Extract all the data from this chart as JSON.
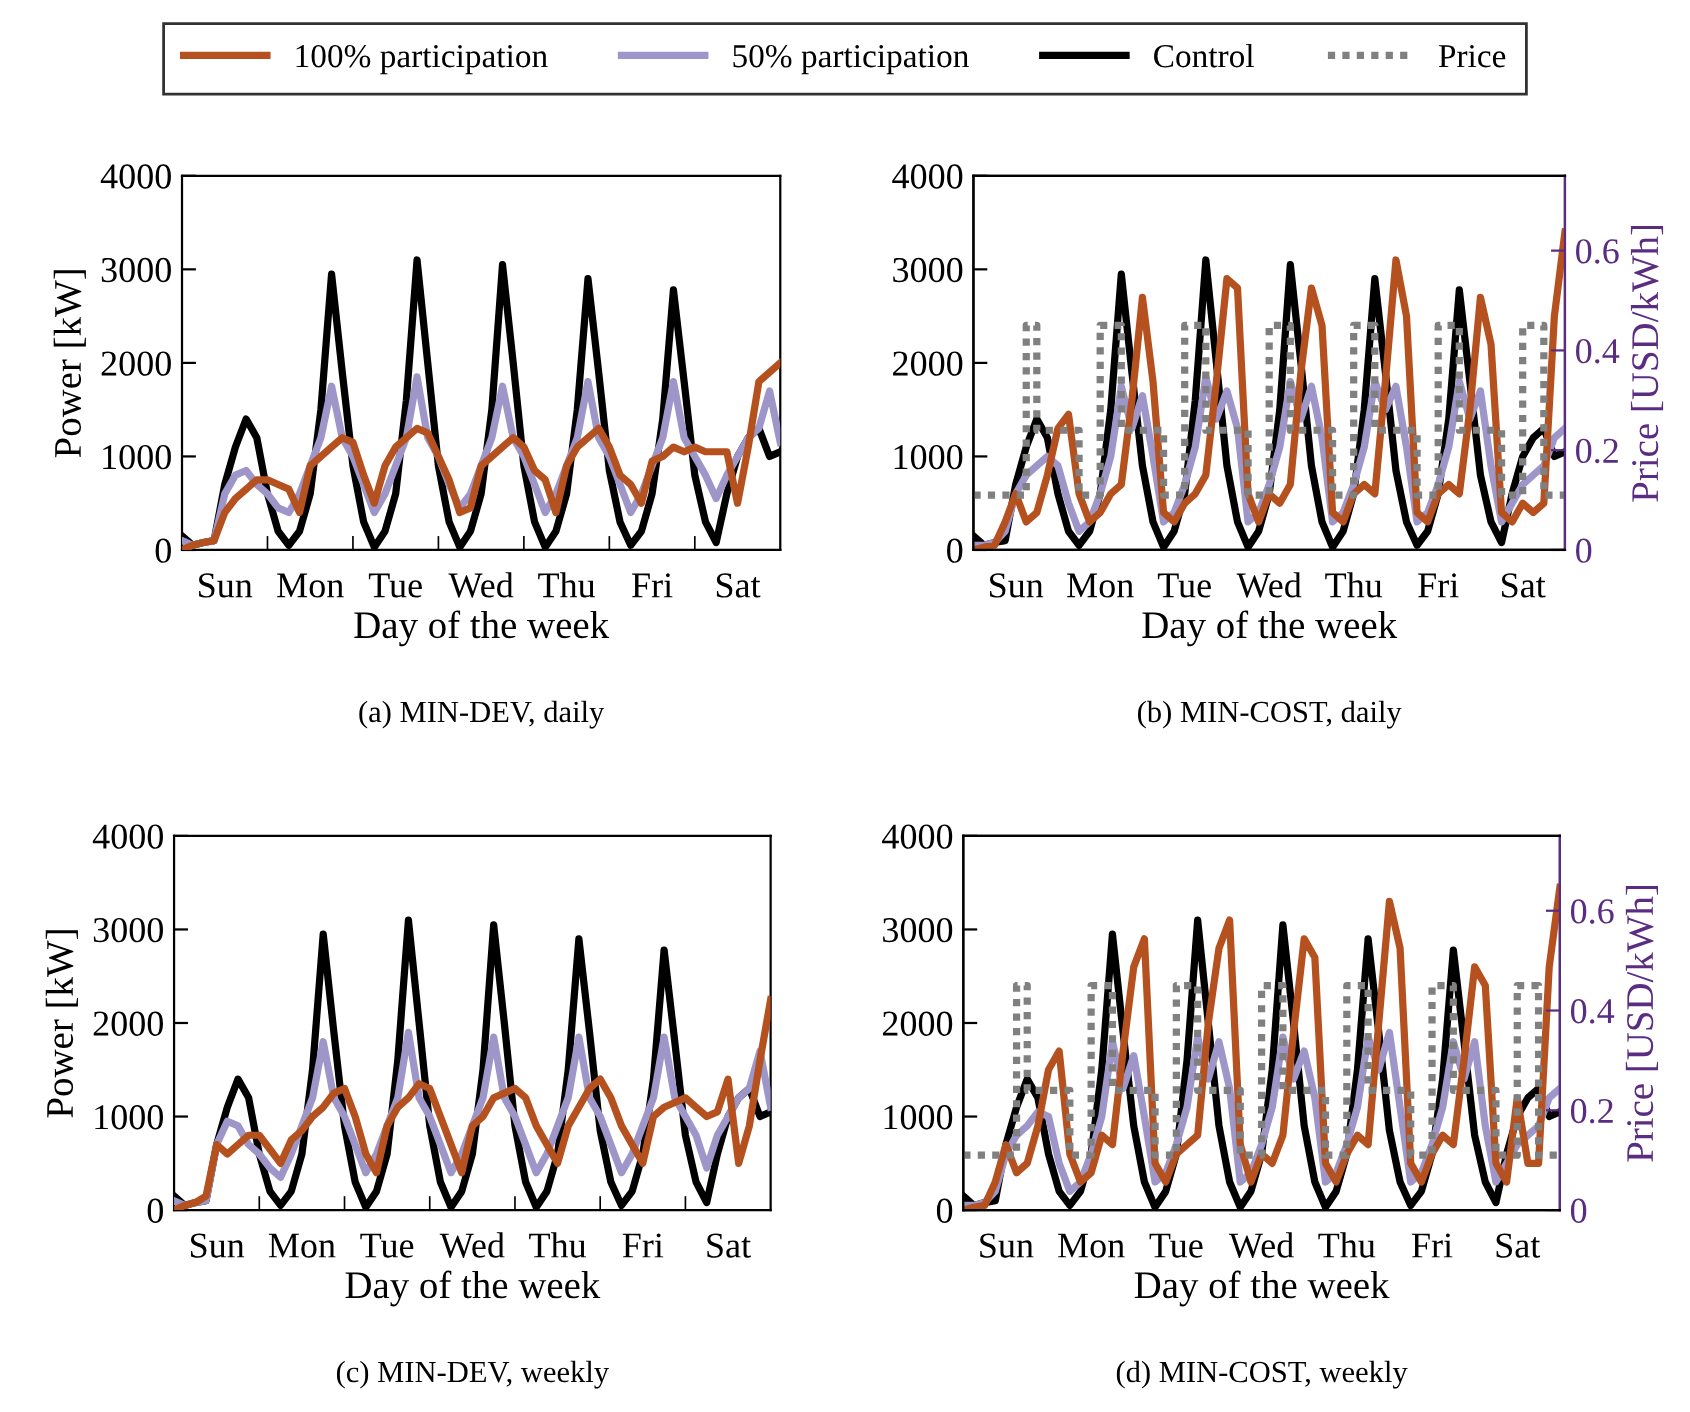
{
  "chart_data": [
    {
      "type": "line",
      "title": "(a) MIN-DEV, daily",
      "xlabel": "Day of the week",
      "ylabel": "Power [kW]",
      "legend": "top",
      "ylim": [
        0,
        4000
      ],
      "yticks": [
        0,
        1000,
        2000,
        3000,
        4000
      ],
      "categories": [
        null,
        null,
        null,
        null,
        "Sun",
        null,
        null,
        null,
        null,
        null,
        null,
        null,
        "Mon",
        null,
        null,
        null,
        null,
        null,
        null,
        null,
        "Tue",
        null,
        null,
        null,
        null,
        null,
        null,
        null,
        "Wed",
        null,
        null,
        null,
        null,
        null,
        null,
        null,
        "Thu",
        null,
        null,
        null,
        null,
        null,
        null,
        null,
        "Fri",
        null,
        null,
        null,
        null,
        null,
        null,
        null,
        "Sat",
        null,
        null,
        null,
        null
      ],
      "series": [
        {
          "name": "100% participation",
          "color": "#b5511f",
          "values": [
            0,
            50,
            80,
            100,
            400,
            550,
            650,
            750,
            750,
            700,
            650,
            400,
            900,
            1000,
            1100,
            1200,
            1150,
            800,
            500,
            900,
            1100,
            1200,
            1300,
            1250,
            1000,
            750,
            400,
            450,
            900,
            1000,
            1100,
            1200,
            1100,
            850,
            750,
            400,
            900,
            1100,
            1200,
            1300,
            1100,
            800,
            700,
            500,
            950,
            1000,
            1100,
            1050,
            1100,
            1050,
            1050,
            1050,
            500,
            1100,
            1800,
            1900,
            2000
          ]
        },
        {
          "name": "50% participation",
          "color": "#9e96c8",
          "values": [
            100,
            50,
            80,
            100,
            600,
            800,
            850,
            700,
            600,
            450,
            400,
            600,
            900,
            1200,
            1750,
            1200,
            1000,
            700,
            400,
            600,
            900,
            1200,
            1850,
            1200,
            1000,
            700,
            450,
            600,
            900,
            1200,
            1750,
            1200,
            1000,
            700,
            400,
            600,
            900,
            1200,
            1800,
            1200,
            1000,
            700,
            400,
            600,
            900,
            1200,
            1800,
            1200,
            1000,
            800,
            550,
            800,
            1000,
            1200,
            1300,
            1700,
            1150
          ]
        },
        {
          "name": "Control",
          "color": "#000000",
          "values": [
            150,
            50,
            80,
            100,
            700,
            1100,
            1400,
            1200,
            600,
            200,
            50,
            200,
            600,
            1500,
            2950,
            1900,
            900,
            300,
            30,
            200,
            600,
            1600,
            3100,
            2000,
            900,
            300,
            30,
            200,
            600,
            1500,
            3050,
            2000,
            900,
            300,
            30,
            200,
            600,
            1500,
            2900,
            1900,
            850,
            300,
            50,
            200,
            600,
            1400,
            2780,
            1800,
            800,
            300,
            80,
            600,
            1000,
            1200,
            1300,
            1000,
            1050
          ]
        }
      ]
    },
    {
      "type": "line",
      "title": "(b) MIN-COST, daily",
      "xlabel": "Day of the week",
      "y2label": "Price [USD/kWh]",
      "legend": "top",
      "ylim": [
        0,
        4000
      ],
      "yticks": [
        0,
        1000,
        2000,
        3000,
        4000
      ],
      "y2lim": [
        0,
        0.75
      ],
      "y2ticks": [
        0,
        0.2,
        0.4,
        0.6
      ],
      "categories": [
        null,
        null,
        null,
        null,
        "Sun",
        null,
        null,
        null,
        null,
        null,
        null,
        null,
        "Mon",
        null,
        null,
        null,
        null,
        null,
        null,
        null,
        "Tue",
        null,
        null,
        null,
        null,
        null,
        null,
        null,
        "Wed",
        null,
        null,
        null,
        null,
        null,
        null,
        null,
        "Thu",
        null,
        null,
        null,
        null,
        null,
        null,
        null,
        "Fri",
        null,
        null,
        null,
        null,
        null,
        null,
        null,
        "Sat",
        null,
        null,
        null,
        null
      ],
      "series": [
        {
          "name": "100% participation",
          "color": "#b5511f",
          "values": [
            0,
            30,
            50,
            300,
            600,
            300,
            400,
            800,
            1300,
            1450,
            600,
            300,
            400,
            600,
            700,
            1600,
            2700,
            1800,
            400,
            300,
            500,
            600,
            800,
            1800,
            2900,
            2800,
            600,
            300,
            600,
            500,
            700,
            1900,
            2800,
            2400,
            400,
            300,
            600,
            700,
            600,
            1800,
            3100,
            2500,
            400,
            300,
            600,
            700,
            600,
            1500,
            2700,
            2200,
            400,
            300,
            500,
            400,
            500,
            2500,
            3400
          ]
        },
        {
          "name": "50% participation",
          "color": "#9e96c8",
          "values": [
            50,
            50,
            80,
            200,
            600,
            800,
            900,
            1000,
            900,
            500,
            200,
            300,
            600,
            1000,
            1750,
            1300,
            1650,
            1000,
            300,
            400,
            700,
            1100,
            1850,
            1400,
            1700,
            1300,
            300,
            400,
            700,
            1100,
            1800,
            1400,
            1750,
            1200,
            300,
            400,
            700,
            1100,
            1800,
            1500,
            1750,
            1100,
            300,
            400,
            700,
            1100,
            1800,
            1400,
            1700,
            900,
            300,
            500,
            700,
            800,
            900,
            1200,
            1300
          ]
        },
        {
          "name": "Control",
          "color": "#000000",
          "values": [
            150,
            50,
            80,
            100,
            700,
            1100,
            1400,
            1200,
            600,
            200,
            50,
            200,
            600,
            1500,
            2950,
            1900,
            900,
            300,
            30,
            200,
            600,
            1600,
            3100,
            2000,
            900,
            300,
            30,
            200,
            600,
            1500,
            3050,
            2000,
            900,
            300,
            30,
            200,
            600,
            1500,
            2900,
            1900,
            850,
            300,
            50,
            200,
            600,
            1400,
            2780,
            1800,
            800,
            300,
            80,
            600,
            1000,
            1200,
            1300,
            1000,
            1050
          ]
        },
        {
          "name": "Price",
          "type": "step",
          "axis": "y2",
          "line_style": "dotted",
          "color": "#808080",
          "values": [
            0.11,
            0.11,
            0.11,
            0.11,
            0.11,
            0.45,
            0.24,
            0.24,
            0.24,
            0.24,
            0.11,
            0.11,
            0.45,
            0.45,
            0.24,
            0.24,
            0.24,
            0.24,
            0.11,
            0.11,
            0.45,
            0.45,
            0.24,
            0.24,
            0.24,
            0.24,
            0.11,
            0.11,
            0.45,
            0.45,
            0.24,
            0.24,
            0.24,
            0.24,
            0.11,
            0.11,
            0.45,
            0.45,
            0.24,
            0.24,
            0.24,
            0.24,
            0.11,
            0.11,
            0.45,
            0.45,
            0.24,
            0.24,
            0.24,
            0.24,
            0.11,
            0.11,
            0.45,
            0.45,
            0.11,
            0.11,
            0.11
          ]
        }
      ]
    },
    {
      "type": "line",
      "title": "(c) MIN-DEV, weekly",
      "xlabel": "Day of the week",
      "ylabel": "Power [kW]",
      "legend": "top",
      "ylim": [
        0,
        4000
      ],
      "yticks": [
        0,
        1000,
        2000,
        3000,
        4000
      ],
      "categories": [
        null,
        null,
        null,
        null,
        "Sun",
        null,
        null,
        null,
        null,
        null,
        null,
        null,
        "Mon",
        null,
        null,
        null,
        null,
        null,
        null,
        null,
        "Tue",
        null,
        null,
        null,
        null,
        null,
        null,
        null,
        "Wed",
        null,
        null,
        null,
        null,
        null,
        null,
        null,
        "Thu",
        null,
        null,
        null,
        null,
        null,
        null,
        null,
        "Fri",
        null,
        null,
        null,
        null,
        null,
        null,
        null,
        "Sat",
        null,
        null,
        null,
        null
      ],
      "series": [
        {
          "name": "100% participation",
          "color": "#b5511f",
          "values": [
            0,
            50,
            80,
            150,
            700,
            600,
            700,
            800,
            800,
            650,
            500,
            750,
            850,
            1000,
            1100,
            1250,
            1300,
            1000,
            600,
            400,
            900,
            1100,
            1200,
            1350,
            1300,
            1000,
            700,
            400,
            900,
            1000,
            1200,
            1250,
            1300,
            1200,
            900,
            700,
            500,
            900,
            1100,
            1300,
            1400,
            1200,
            900,
            700,
            500,
            1000,
            1100,
            1150,
            1200,
            1100,
            1000,
            1050,
            1400,
            500,
            900,
            1600,
            2250
          ]
        },
        {
          "name": "50% participation",
          "color": "#9e96c8",
          "values": [
            100,
            50,
            80,
            100,
            700,
            950,
            900,
            700,
            600,
            450,
            350,
            600,
            900,
            1200,
            1800,
            1200,
            1000,
            700,
            400,
            600,
            900,
            1200,
            1900,
            1200,
            1000,
            700,
            400,
            600,
            900,
            1200,
            1850,
            1200,
            1000,
            700,
            400,
            600,
            900,
            1200,
            1850,
            1200,
            1000,
            700,
            400,
            600,
            900,
            1200,
            1850,
            1200,
            1000,
            800,
            450,
            800,
            1000,
            1200,
            1300,
            1700,
            1100
          ]
        },
        {
          "name": "Control",
          "color": "#000000",
          "values": [
            150,
            50,
            80,
            100,
            700,
            1100,
            1400,
            1200,
            600,
            200,
            50,
            200,
            600,
            1500,
            2950,
            1900,
            900,
            300,
            30,
            200,
            600,
            1600,
            3100,
            2000,
            900,
            300,
            30,
            200,
            600,
            1500,
            3050,
            2000,
            900,
            300,
            30,
            200,
            600,
            1500,
            2900,
            1900,
            850,
            300,
            50,
            200,
            600,
            1400,
            2780,
            1800,
            800,
            300,
            80,
            600,
            1000,
            1200,
            1300,
            1000,
            1050
          ]
        }
      ]
    },
    {
      "type": "line",
      "title": "(d) MIN-COST, weekly",
      "xlabel": "Day of the week",
      "y2label": "Price [USD/kWh]",
      "legend": "top",
      "ylim": [
        0,
        4000
      ],
      "yticks": [
        0,
        1000,
        2000,
        3000,
        4000
      ],
      "y2lim": [
        0,
        0.75
      ],
      "y2ticks": [
        0,
        0.2,
        0.4,
        0.6
      ],
      "categories": [
        null,
        null,
        null,
        null,
        "Sun",
        null,
        null,
        null,
        null,
        null,
        null,
        null,
        "Mon",
        null,
        null,
        null,
        null,
        null,
        null,
        null,
        "Tue",
        null,
        null,
        null,
        null,
        null,
        null,
        null,
        "Wed",
        null,
        null,
        null,
        null,
        null,
        null,
        null,
        "Thu",
        null,
        null,
        null,
        null,
        null,
        null,
        null,
        "Fri",
        null,
        null,
        null,
        null,
        null,
        null,
        null,
        "Sat",
        null,
        null,
        null,
        null
      ],
      "series": [
        {
          "name": "100% participation",
          "color": "#b5511f",
          "values": [
            0,
            30,
            50,
            300,
            700,
            400,
            500,
            900,
            1500,
            1700,
            600,
            300,
            400,
            800,
            700,
            1700,
            2600,
            2900,
            500,
            300,
            600,
            700,
            800,
            2000,
            2800,
            3100,
            700,
            300,
            600,
            500,
            800,
            1900,
            2900,
            2700,
            500,
            300,
            600,
            800,
            700,
            2000,
            3300,
            2800,
            500,
            300,
            600,
            800,
            700,
            1600,
            2600,
            2400,
            500,
            300,
            1200,
            500,
            500,
            2600,
            3450
          ]
        },
        {
          "name": "50% participation",
          "color": "#9e96c8",
          "values": [
            50,
            50,
            80,
            200,
            600,
            800,
            900,
            1050,
            1000,
            500,
            200,
            300,
            600,
            1000,
            1800,
            1300,
            1650,
            1000,
            300,
            400,
            700,
            1100,
            1850,
            1400,
            1800,
            1300,
            300,
            400,
            700,
            1100,
            1850,
            1400,
            1700,
            1200,
            300,
            400,
            700,
            1100,
            1850,
            1500,
            1900,
            1100,
            300,
            400,
            700,
            1100,
            1800,
            1400,
            1800,
            900,
            300,
            500,
            700,
            800,
            900,
            1200,
            1300
          ]
        },
        {
          "name": "Control",
          "color": "#000000",
          "values": [
            150,
            50,
            80,
            100,
            700,
            1100,
            1400,
            1200,
            600,
            200,
            50,
            200,
            600,
            1500,
            2950,
            1900,
            900,
            300,
            30,
            200,
            600,
            1600,
            3100,
            2000,
            900,
            300,
            30,
            200,
            600,
            1500,
            3050,
            2000,
            900,
            300,
            30,
            200,
            600,
            1500,
            2900,
            1900,
            850,
            300,
            50,
            200,
            600,
            1400,
            2780,
            1800,
            800,
            300,
            80,
            600,
            1000,
            1200,
            1300,
            1000,
            1050
          ]
        },
        {
          "name": "Price",
          "type": "step",
          "axis": "y2",
          "line_style": "dotted",
          "color": "#808080",
          "values": [
            0.11,
            0.11,
            0.11,
            0.11,
            0.11,
            0.45,
            0.24,
            0.24,
            0.24,
            0.24,
            0.11,
            0.11,
            0.45,
            0.45,
            0.24,
            0.24,
            0.24,
            0.24,
            0.11,
            0.11,
            0.45,
            0.45,
            0.24,
            0.24,
            0.24,
            0.24,
            0.11,
            0.11,
            0.45,
            0.45,
            0.24,
            0.24,
            0.24,
            0.24,
            0.11,
            0.11,
            0.45,
            0.45,
            0.24,
            0.24,
            0.24,
            0.24,
            0.11,
            0.11,
            0.45,
            0.45,
            0.24,
            0.24,
            0.24,
            0.24,
            0.11,
            0.11,
            0.45,
            0.45,
            0.11,
            0.11,
            0.11
          ]
        }
      ]
    }
  ]
}
